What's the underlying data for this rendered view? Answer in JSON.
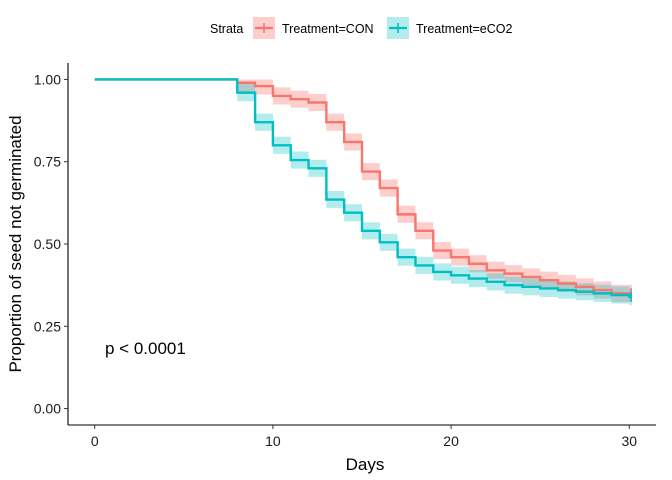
{
  "chart_data": {
    "type": "line",
    "subtype": "kaplan-meier step curve with confidence bands",
    "xlabel": "Days",
    "ylabel": "Proportion of seed not germinated",
    "xlim": [
      -1.5,
      31.5
    ],
    "ylim": [
      -0.05,
      1.05
    ],
    "x_ticks": [
      0,
      10,
      20,
      30
    ],
    "x_tick_labels": [
      "0",
      "10",
      "20",
      "30"
    ],
    "y_ticks": [
      0,
      0.25,
      0.5,
      0.75,
      1.0
    ],
    "y_tick_labels": [
      "0.00",
      "0.25",
      "0.50",
      "0.75",
      "1.00"
    ],
    "grid": false,
    "legend": {
      "position": "top",
      "title": "Strata",
      "entries": [
        "Treatment=CON",
        "Treatment=eCO2"
      ]
    },
    "annotation": "p < 0.0001",
    "series": [
      {
        "name": "Treatment=CON",
        "color": "#F8766D",
        "steps": [
          [
            0,
            1.0
          ],
          [
            8,
            0.99
          ],
          [
            9,
            0.98
          ],
          [
            10,
            0.95
          ],
          [
            11,
            0.94
          ],
          [
            12,
            0.93
          ],
          [
            13,
            0.87
          ],
          [
            14,
            0.81
          ],
          [
            15,
            0.72
          ],
          [
            16,
            0.67
          ],
          [
            17,
            0.59
          ],
          [
            18,
            0.54
          ],
          [
            19,
            0.48
          ],
          [
            20,
            0.46
          ],
          [
            21,
            0.44
          ],
          [
            22,
            0.42
          ],
          [
            23,
            0.41
          ],
          [
            24,
            0.4
          ],
          [
            25,
            0.39
          ],
          [
            26,
            0.38
          ],
          [
            27,
            0.37
          ],
          [
            28,
            0.36
          ],
          [
            29,
            0.35
          ],
          [
            30,
            0.35
          ]
        ],
        "ci_width": 0.026
      },
      {
        "name": "Treatment=eCO2",
        "color": "#00BFC4",
        "steps": [
          [
            0,
            1.0
          ],
          [
            8,
            0.96
          ],
          [
            9,
            0.87
          ],
          [
            10,
            0.8
          ],
          [
            11,
            0.755
          ],
          [
            12,
            0.73
          ],
          [
            13,
            0.635
          ],
          [
            14,
            0.595
          ],
          [
            15,
            0.54
          ],
          [
            16,
            0.505
          ],
          [
            17,
            0.46
          ],
          [
            18,
            0.435
          ],
          [
            19,
            0.415
          ],
          [
            20,
            0.405
          ],
          [
            21,
            0.395
          ],
          [
            22,
            0.385
          ],
          [
            23,
            0.375
          ],
          [
            24,
            0.37
          ],
          [
            25,
            0.365
          ],
          [
            26,
            0.36
          ],
          [
            27,
            0.355
          ],
          [
            28,
            0.35
          ],
          [
            29,
            0.345
          ],
          [
            30,
            0.34
          ]
        ],
        "ci_width": 0.026
      }
    ]
  }
}
